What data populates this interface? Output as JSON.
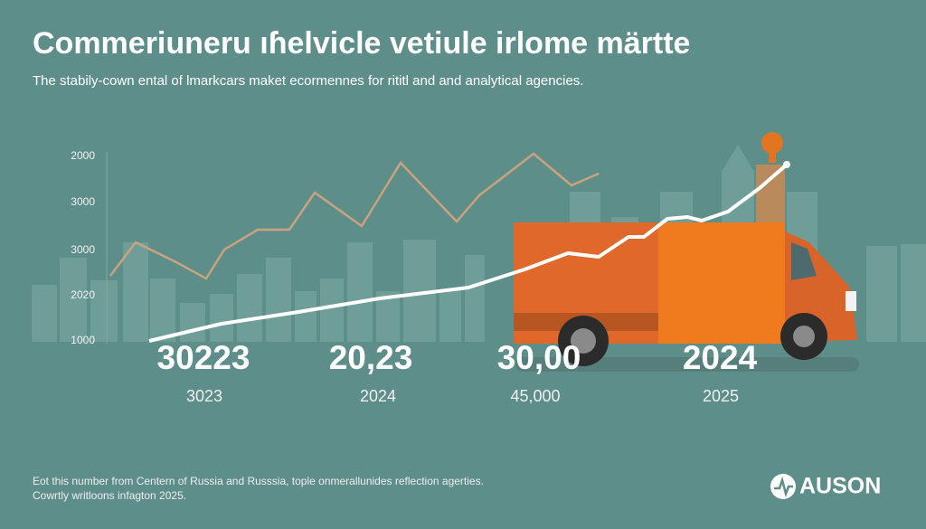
{
  "header": {
    "title": "Commeriuneru ıɦelvicle vetiule irlome märtte",
    "subtitle": "The stabily-cown ental of lmarkcars maket ecormennes for rititl and and analytical agencies."
  },
  "axis": {
    "labels": [
      "2000",
      "3000",
      "3000",
      "2020",
      "1000"
    ]
  },
  "figures": [
    {
      "value": "30223",
      "label": "3023"
    },
    {
      "value": "20,23",
      "label": "2024"
    },
    {
      "value": "30,00",
      "label": "45,000"
    },
    {
      "value": "2024",
      "label": "2025"
    }
  ],
  "footer": {
    "lines": [
      "Eot this number from Centern of Russia and Russsia, tople onmerallunides reflection agerties.",
      "Cowrtly writloons infagton 2025."
    ]
  },
  "logo": {
    "text": "AUSON"
  }
}
